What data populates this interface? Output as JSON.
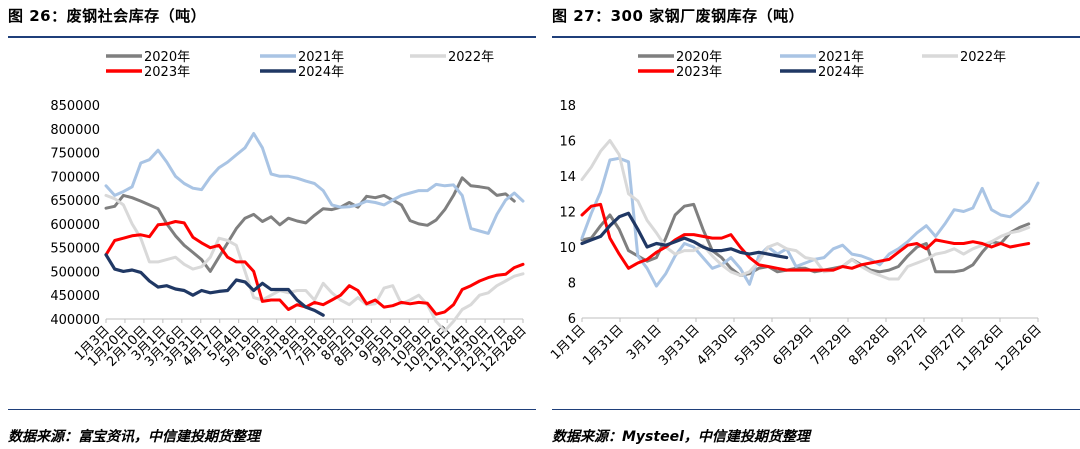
{
  "panels": [
    {
      "title": "图 26：废钢社会库存（吨）",
      "source": "数据来源：富宝资讯，中信建投期货整理"
    },
    {
      "title": "图 27：300 家钢厂废钢库存（吨）",
      "source": "数据来源：Mysteel，中信建投期货整理"
    }
  ],
  "chart_data": [
    {
      "type": "line",
      "title": "废钢社会库存（吨）",
      "ylim": [
        400000,
        850000
      ],
      "yticks": [
        400000,
        450000,
        500000,
        550000,
        600000,
        650000,
        700000,
        750000,
        800000,
        850000
      ],
      "ytick_labels": [
        "400000",
        "450000",
        "500000",
        "550000",
        "600000",
        "650000",
        "700000",
        "750000",
        "800000",
        "850000"
      ],
      "x_labels": [
        "1月3日",
        "1月20日",
        "2月10日",
        "3月1日",
        "3月16日",
        "3月31日",
        "4月17日",
        "5月4日",
        "5月19日",
        "6月3日",
        "6月18日",
        "7月3日",
        "7月18日",
        "8月2日",
        "8月19日",
        "9月5日",
        "9月19日",
        "10月9日",
        "10月26日",
        "11月14日",
        "11月30日",
        "12月17日",
        "12月28日"
      ],
      "legend_position": "top",
      "grid": false,
      "series": [
        {
          "name": "2020年",
          "color": "#7f7f7f",
          "values": [
            633000,
            637000,
            660000,
            655000,
            648000,
            640000,
            632000,
            600000,
            575000,
            555000,
            540000,
            525000,
            500000,
            530000,
            560000,
            590000,
            612000,
            620000,
            605000,
            615000,
            598000,
            612000,
            606000,
            602000,
            618000,
            632000,
            630000,
            635000,
            645000,
            635000,
            658000,
            655000,
            660000,
            650000,
            640000,
            607000,
            600000,
            597000,
            608000,
            630000,
            660000,
            697000,
            680000,
            678000,
            675000,
            660000,
            663000,
            648000
          ]
        },
        {
          "name": "2021年",
          "color": "#a9c4e4",
          "values": [
            680000,
            660000,
            668000,
            678000,
            728000,
            735000,
            755000,
            730000,
            700000,
            685000,
            675000,
            672000,
            698000,
            718000,
            730000,
            745000,
            760000,
            790000,
            760000,
            705000,
            700000,
            700000,
            696000,
            690000,
            685000,
            670000,
            640000,
            635000,
            636000,
            640000,
            648000,
            645000,
            640000,
            650000,
            660000,
            665000,
            670000,
            670000,
            683000,
            680000,
            682000,
            660000,
            590000,
            585000,
            580000,
            620000,
            650000,
            665000,
            648000
          ]
        },
        {
          "name": "2022年",
          "color": "#d9d9d9",
          "values": [
            660000,
            653000,
            640000,
            600000,
            570000,
            520000,
            520000,
            525000,
            530000,
            515000,
            505000,
            510000,
            530000,
            570000,
            565000,
            555000,
            500000,
            445000,
            440000,
            450000,
            460000,
            455000,
            460000,
            460000,
            440000,
            475000,
            455000,
            440000,
            430000,
            445000,
            430000,
            432000,
            465000,
            470000,
            432000,
            440000,
            450000,
            430000,
            395000,
            375000,
            395000,
            420000,
            430000,
            450000,
            455000,
            470000,
            480000,
            490000,
            495000
          ]
        },
        {
          "name": "2023年",
          "color": "#ff0000",
          "values": [
            535000,
            565000,
            570000,
            575000,
            577000,
            573000,
            598000,
            600000,
            605000,
            602000,
            572000,
            560000,
            550000,
            555000,
            530000,
            520000,
            520000,
            500000,
            437000,
            440000,
            440000,
            420000,
            430000,
            425000,
            435000,
            430000,
            440000,
            450000,
            470000,
            460000,
            432000,
            440000,
            425000,
            428000,
            435000,
            432000,
            435000,
            433000,
            410000,
            415000,
            430000,
            462000,
            470000,
            480000,
            487000,
            492000,
            494000,
            508000,
            515000
          ]
        },
        {
          "name": "2024年",
          "color": "#203864",
          "values": [
            535000,
            505000,
            500000,
            503000,
            498000,
            480000,
            467000,
            470000,
            463000,
            460000,
            450000,
            460000,
            455000,
            458000,
            460000,
            482000,
            478000,
            460000,
            475000,
            462000,
            462000,
            462000,
            440000,
            425000,
            418000,
            408000
          ]
        }
      ]
    },
    {
      "type": "line",
      "title": "300家钢厂废钢库存（吨）",
      "ylim": [
        6,
        18
      ],
      "yticks": [
        6,
        8,
        10,
        12,
        14,
        16,
        18
      ],
      "ytick_labels": [
        "6",
        "8",
        "10",
        "12",
        "14",
        "16",
        "18"
      ],
      "x_labels": [
        "1月1日",
        "1月31日",
        "3月1日",
        "3月31日",
        "4月30日",
        "5月30日",
        "6月29日",
        "7月29日",
        "8月28日",
        "9月27日",
        "10月27日",
        "11月26日",
        "12月26日"
      ],
      "legend_position": "top",
      "grid": false,
      "series": [
        {
          "name": "2020年",
          "color": "#7f7f7f",
          "values": [
            10.4,
            10.5,
            11.2,
            11.8,
            11.0,
            9.8,
            9.5,
            9.2,
            9.4,
            10.5,
            11.8,
            12.3,
            12.4,
            11.0,
            9.8,
            9.4,
            8.8,
            8.4,
            8.5,
            8.8,
            8.9,
            8.6,
            8.7,
            8.8,
            8.8,
            8.6,
            8.7,
            8.8,
            8.9,
            9.3,
            9.0,
            8.7,
            8.6,
            8.7,
            8.9,
            9.5,
            10.0,
            10.2,
            8.6,
            8.6,
            8.6,
            8.7,
            9.0,
            9.7,
            10.3,
            10.2,
            10.8,
            11.1,
            11.3
          ]
        },
        {
          "name": "2021年",
          "color": "#a9c4e4",
          "values": [
            10.5,
            11.9,
            13.1,
            14.9,
            15.0,
            14.8,
            9.5,
            8.8,
            7.8,
            8.5,
            9.5,
            10.2,
            10.0,
            9.4,
            8.8,
            9.0,
            9.4,
            8.8,
            7.9,
            9.5,
            10.0,
            9.6,
            9.9,
            8.9,
            9.1,
            9.3,
            9.4,
            9.9,
            10.1,
            9.6,
            9.5,
            9.3,
            9.0,
            9.6,
            9.9,
            10.3,
            10.8,
            11.2,
            10.6,
            11.3,
            12.1,
            12.0,
            12.2,
            13.3,
            12.1,
            11.8,
            11.7,
            12.1,
            12.6,
            13.6
          ]
        },
        {
          "name": "2022年",
          "color": "#d9d9d9",
          "values": [
            13.8,
            14.5,
            15.4,
            16.0,
            15.2,
            13.0,
            12.6,
            11.5,
            10.8,
            10.0,
            9.6,
            9.8,
            9.8,
            10.1,
            9.5,
            9.0,
            8.6,
            8.4,
            8.6,
            9.2,
            10.0,
            10.2,
            9.9,
            9.8,
            9.4,
            9.3,
            8.6,
            8.7,
            8.9,
            9.3,
            8.9,
            8.6,
            8.4,
            8.2,
            8.2,
            8.9,
            9.1,
            9.3,
            9.6,
            9.7,
            9.9,
            9.6,
            9.9,
            10.1,
            10.3,
            10.6,
            10.8,
            10.9,
            11.1
          ]
        },
        {
          "name": "2023年",
          "color": "#ff0000",
          "values": [
            11.8,
            12.3,
            12.4,
            10.5,
            9.6,
            8.8,
            9.1,
            9.3,
            9.7,
            10.0,
            10.4,
            10.7,
            10.7,
            10.6,
            10.5,
            10.5,
            10.7,
            10.0,
            9.4,
            9.0,
            8.9,
            8.8,
            8.7,
            8.7,
            8.7,
            8.7,
            8.7,
            8.7,
            8.9,
            8.8,
            9.0,
            9.1,
            9.2,
            9.3,
            9.7,
            10.1,
            10.2,
            9.9,
            10.4,
            10.3,
            10.2,
            10.2,
            10.3,
            10.2,
            10.0,
            10.2,
            10.0,
            10.1,
            10.2
          ]
        },
        {
          "name": "2024年",
          "color": "#203864",
          "values": [
            10.2,
            10.4,
            10.6,
            11.2,
            11.7,
            11.9,
            11.0,
            10.0,
            10.2,
            10.1,
            10.3,
            10.5,
            10.3,
            10.0,
            9.8,
            9.8,
            9.9,
            9.7,
            9.6,
            9.7,
            9.6,
            9.5,
            9.4
          ]
        }
      ]
    }
  ]
}
